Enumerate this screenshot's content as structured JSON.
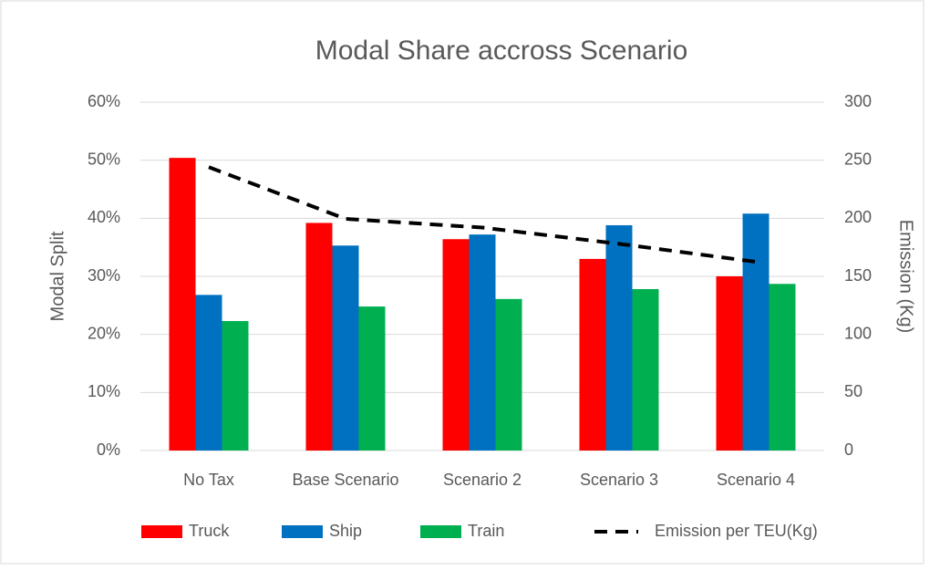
{
  "chart_data": {
    "type": "bar",
    "title": "Modal Share accross Scenario",
    "ylabel": "Modal Split",
    "y2label": "Emission (Kg)",
    "categories": [
      "No Tax",
      "Base Scenario",
      "Scenario 2",
      "Scenario 3",
      "Scenario 4"
    ],
    "series": [
      {
        "name": "Truck",
        "color": "#ff0000",
        "values": [
          50.4,
          39.2,
          36.4,
          33.0,
          30.0
        ]
      },
      {
        "name": "Ship",
        "color": "#0070c0",
        "values": [
          26.8,
          35.3,
          37.2,
          38.8,
          40.8
        ]
      },
      {
        "name": "Train",
        "color": "#00b050",
        "values": [
          22.3,
          24.8,
          26.1,
          27.8,
          28.7
        ]
      },
      {
        "name": "Emission per TEU(Kg)",
        "color": "#000000",
        "type": "line",
        "axis": "y2",
        "values": [
          244,
          199.5,
          192,
          178,
          162.5
        ]
      }
    ],
    "ylim": [
      0,
      60
    ],
    "yticks": [
      {
        "value": 0,
        "label": "0%"
      },
      {
        "value": 10,
        "label": "10%"
      },
      {
        "value": 20,
        "label": "20%"
      },
      {
        "value": 30,
        "label": "30%"
      },
      {
        "value": 40,
        "label": "40%"
      },
      {
        "value": 50,
        "label": "50%"
      },
      {
        "value": 60,
        "label": "60%"
      }
    ],
    "y2lim": [
      0,
      300
    ],
    "y2ticks": [
      0,
      50,
      100,
      150,
      200,
      250,
      300
    ],
    "grid": true,
    "legend": "bottom"
  }
}
